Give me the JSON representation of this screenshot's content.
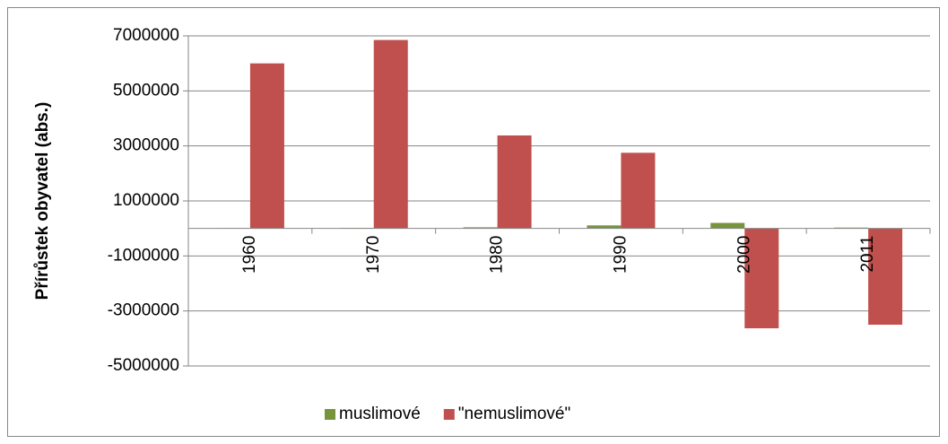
{
  "chart_data": {
    "type": "bar",
    "y_label": "Přírůstek obyvatel (abs.)",
    "categories": [
      "1960",
      "1970",
      "1980",
      "1990",
      "2000",
      "2011"
    ],
    "series": [
      {
        "name": "muslimové",
        "color": "#77933c",
        "values": [
          10000,
          20000,
          40000,
          110000,
          200000,
          30000
        ]
      },
      {
        "name": "\"nemuslimové\"",
        "color": "#c0504d",
        "values": [
          6000000,
          6850000,
          3380000,
          2750000,
          -3630000,
          -3500000
        ]
      }
    ],
    "ylim": [
      -5000000,
      7000000
    ],
    "yticks": [
      -5000000,
      -3000000,
      -1000000,
      1000000,
      3000000,
      5000000,
      7000000
    ],
    "grid": true,
    "legend": "bottom"
  }
}
